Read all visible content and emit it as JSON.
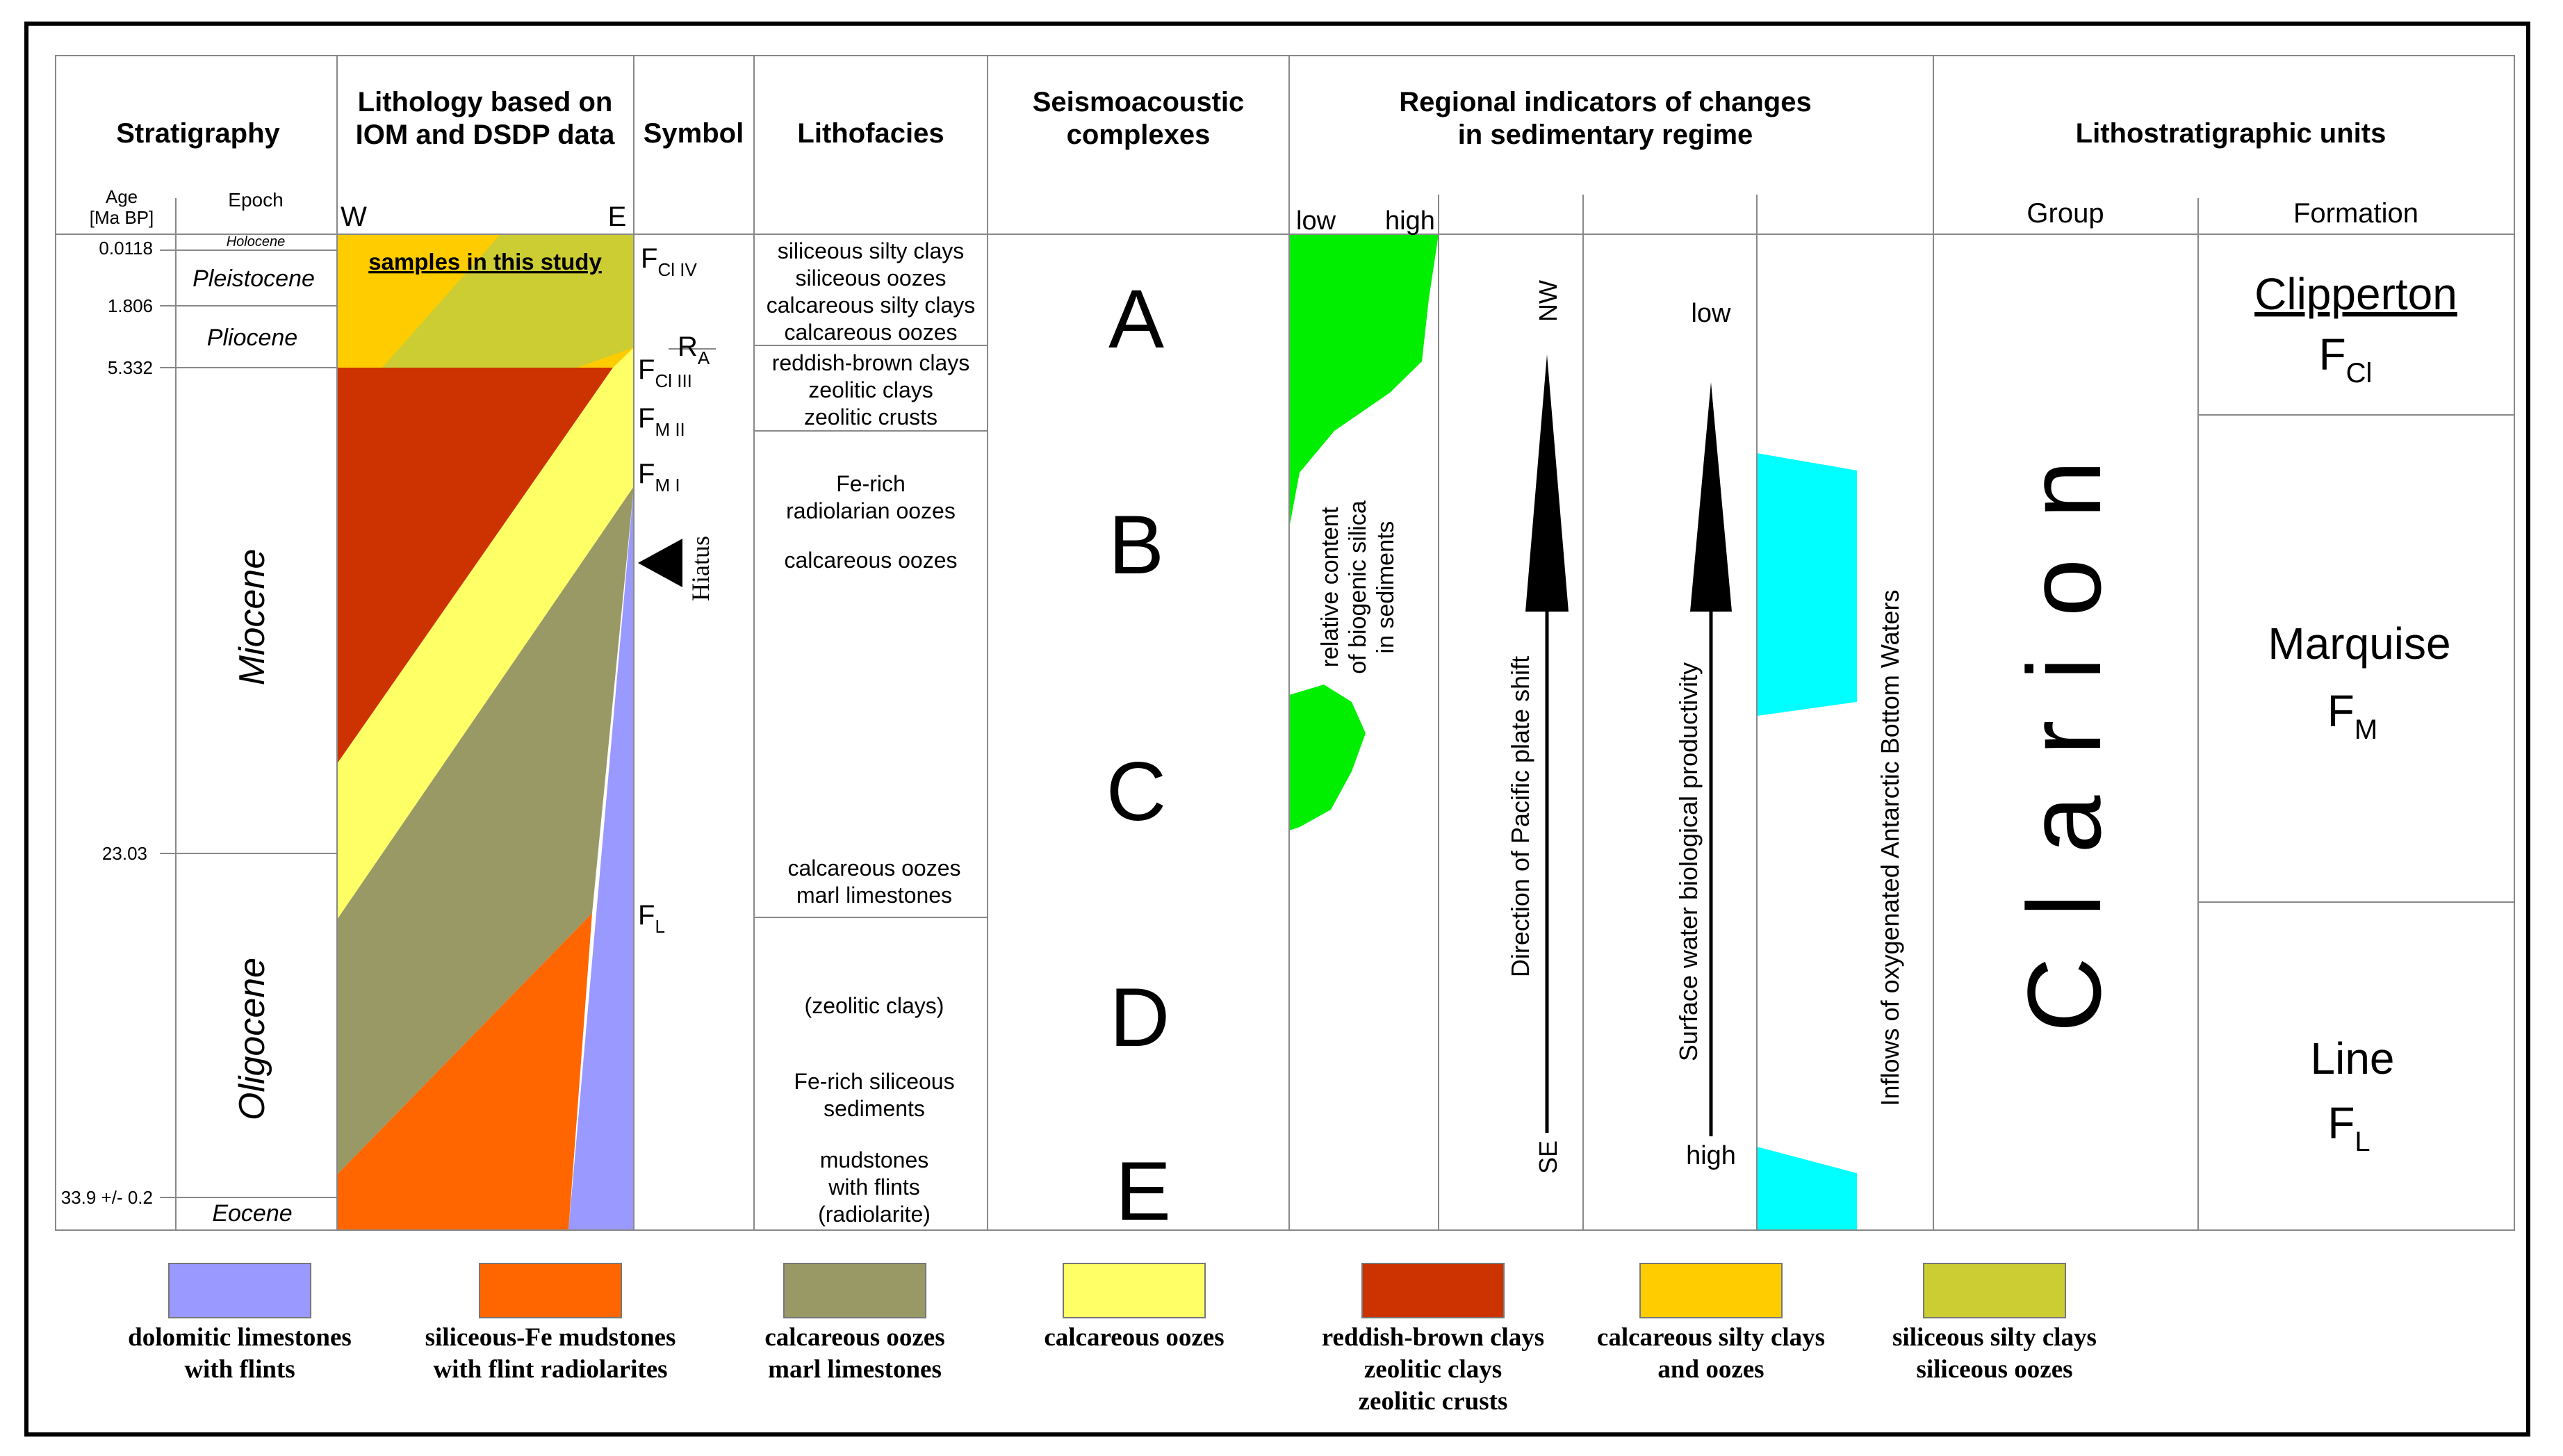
{
  "headers": {
    "stratigraphy": "Stratigraphy",
    "lithology_1": "Lithology based on",
    "lithology_2": "IOM and DSDP data",
    "symbol": "Symbol",
    "lithofacies": "Lithofacies",
    "seismo_1": "Seismoacoustic",
    "seismo_2": "complexes",
    "regional_1": "Regional indicators of changes",
    "regional_2": "in sedimentary regime",
    "litho_units": "Lithostratigraphic units"
  },
  "subheaders": {
    "age_1": "Age",
    "age_2": "[Ma BP]",
    "epoch": "Epoch",
    "west": "W",
    "east": "E",
    "group": "Group",
    "formation": "Formation"
  },
  "ages": {
    "a1": "0.0118",
    "a2": "1.806",
    "a3": "5.332",
    "a4": "23.03",
    "a5": "33.9 +/- 0.2"
  },
  "epochs": {
    "holocene": "Holocene",
    "pleistocene": "Pleistocene",
    "pliocene": "Pliocene",
    "miocene": "Miocene",
    "oligocene": "Oligocene",
    "eocene": "Eocene"
  },
  "samples_label": "samples in this study",
  "symbols": {
    "fciv": "F",
    "fciv_sub": "Cl IV",
    "ra": "R",
    "ra_sub": "A",
    "fciii": "F",
    "fciii_sub": "Cl III",
    "fmii": "F",
    "fmii_sub": "M II",
    "fmi": "F",
    "fmi_sub": "M I",
    "hiatus": "Hiatus",
    "fl": "F",
    "fl_sub": "L"
  },
  "lithofacies": {
    "l1": "siliceous silty clays",
    "l2": "siliceous oozes",
    "l3": "calcareous silty clays",
    "l4": "calcareous oozes",
    "l5": "reddish-brown clays",
    "l6": "zeolitic clays",
    "l7": "zeolitic crusts",
    "l8": "Fe-rich",
    "l9": "radiolarian oozes",
    "l10": "calcareous oozes",
    "l11": "calcareous oozes",
    "l12": "marl limestones",
    "l13": "(zeolitic clays)",
    "l14": "Fe-rich siliceous",
    "l15": "sediments",
    "l16": "mudstones",
    "l17": "with flints",
    "l18": "(radiolarite)"
  },
  "complexes": {
    "a": "A",
    "b": "B",
    "c": "C",
    "d": "D",
    "e": "E"
  },
  "indicators": {
    "silica_low": "low",
    "silica_high": "high",
    "silica_1": "relative content",
    "silica_2": "of biogenic silica",
    "silica_3": "in sediments",
    "plate_nw": "NW",
    "plate_se": "SE",
    "plate_label": "Direction of Pacific plate shift",
    "prod_low": "low",
    "prod_high": "high",
    "prod_label": "Surface water biological productivity",
    "aabw_label": "Inflows of oxygenated Antarctic Bottom Waters"
  },
  "units": {
    "group_name": "Clarion",
    "clipperton": "Clipperton",
    "clipperton_f": "F",
    "clipperton_sub": "Cl",
    "marquise": "Marquise",
    "marquise_f": "F",
    "marquise_sub": "M",
    "line": "Line",
    "line_f": "F",
    "line_sub": "L"
  },
  "legend": [
    {
      "color": "#9999ff",
      "line1": "dolomitic limestones",
      "line2": "with flints",
      "line3": ""
    },
    {
      "color": "#ff6600",
      "line1": "siliceous-Fe mudstones",
      "line2": "with flint radiolarites",
      "line3": ""
    },
    {
      "color": "#999966",
      "line1": "calcareous oozes",
      "line2": "marl limestones",
      "line3": ""
    },
    {
      "color": "#ffff66",
      "line1": "calcareous oozes",
      "line2": "",
      "line3": ""
    },
    {
      "color": "#cc3300",
      "line1": "reddish-brown clays",
      "line2": "zeolitic clays",
      "line3": "zeolitic crusts"
    },
    {
      "color": "#ffcc00",
      "line1": "calcareous silty clays",
      "line2": "and oozes",
      "line3": ""
    },
    {
      "color": "#cccc33",
      "line1": "siliceous silty clays",
      "line2": "siliceous oozes",
      "line3": ""
    }
  ],
  "colors": {
    "dolomitic": "#9999ff",
    "siliceous_fe": "#ff6600",
    "calc_marl": "#999966",
    "calc_oozes": "#ffff66",
    "red_clays": "#cc3300",
    "calc_silty": "#ffcc00",
    "sil_silty": "#cccc33",
    "silica": "#00ee00",
    "aabw": "#00ffff"
  }
}
